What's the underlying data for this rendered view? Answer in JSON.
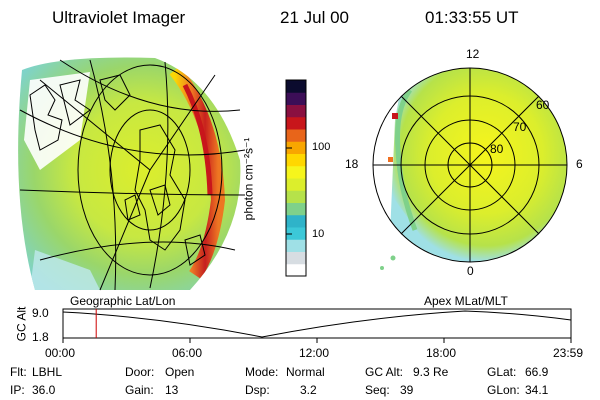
{
  "header": {
    "instrument": "Ultraviolet Imager",
    "date": "21 Jul 00",
    "time": "01:33:55 UT"
  },
  "colorbar": {
    "label": "photon cm⁻²s⁻¹",
    "ticks": [
      "100",
      "10"
    ],
    "colors": [
      "#ffffff",
      "#d7dde2",
      "#9fe0e6",
      "#3cc8d8",
      "#2fb3c9",
      "#7fd18a",
      "#b6e24a",
      "#dcee2c",
      "#f6f51c",
      "#ffd700",
      "#f8a600",
      "#e8651a",
      "#c8161b",
      "#8a1040",
      "#3c0e57",
      "#0b0b2e"
    ]
  },
  "left_panel": {
    "caption": "Geographic Lat/Lon"
  },
  "right_panel": {
    "caption": "Apex MLat/MLT",
    "mlt_labels": {
      "top": "12",
      "left": "18",
      "right": "6",
      "bottom": "0"
    },
    "lat_labels": [
      "60",
      "70",
      "80"
    ]
  },
  "timeline": {
    "ylabel": "GC Alt",
    "yticks": [
      "9.0",
      "1.8"
    ],
    "xticks": [
      "00:00",
      "06:00",
      "12:00",
      "18:00",
      "23:59"
    ],
    "marker_hours": 1.57,
    "marker_color": "#cc0000"
  },
  "info": {
    "row1": [
      {
        "label": "Flt:",
        "value": "LBHL"
      },
      {
        "label": "Door:",
        "value": "Open"
      },
      {
        "label": "Mode:",
        "value": "Normal"
      },
      {
        "label": "GC Alt:",
        "value": "9.3 Re"
      },
      {
        "label": "GLat:",
        "value": "66.9"
      }
    ],
    "row2": [
      {
        "label": "IP:",
        "value": "36.0"
      },
      {
        "label": "Gain:",
        "value": "13"
      },
      {
        "label": "Dsp:",
        "value": "3.2"
      },
      {
        "label": "Seq:",
        "value": "39"
      },
      {
        "label": "GLon:",
        "value": "34.1"
      }
    ]
  }
}
